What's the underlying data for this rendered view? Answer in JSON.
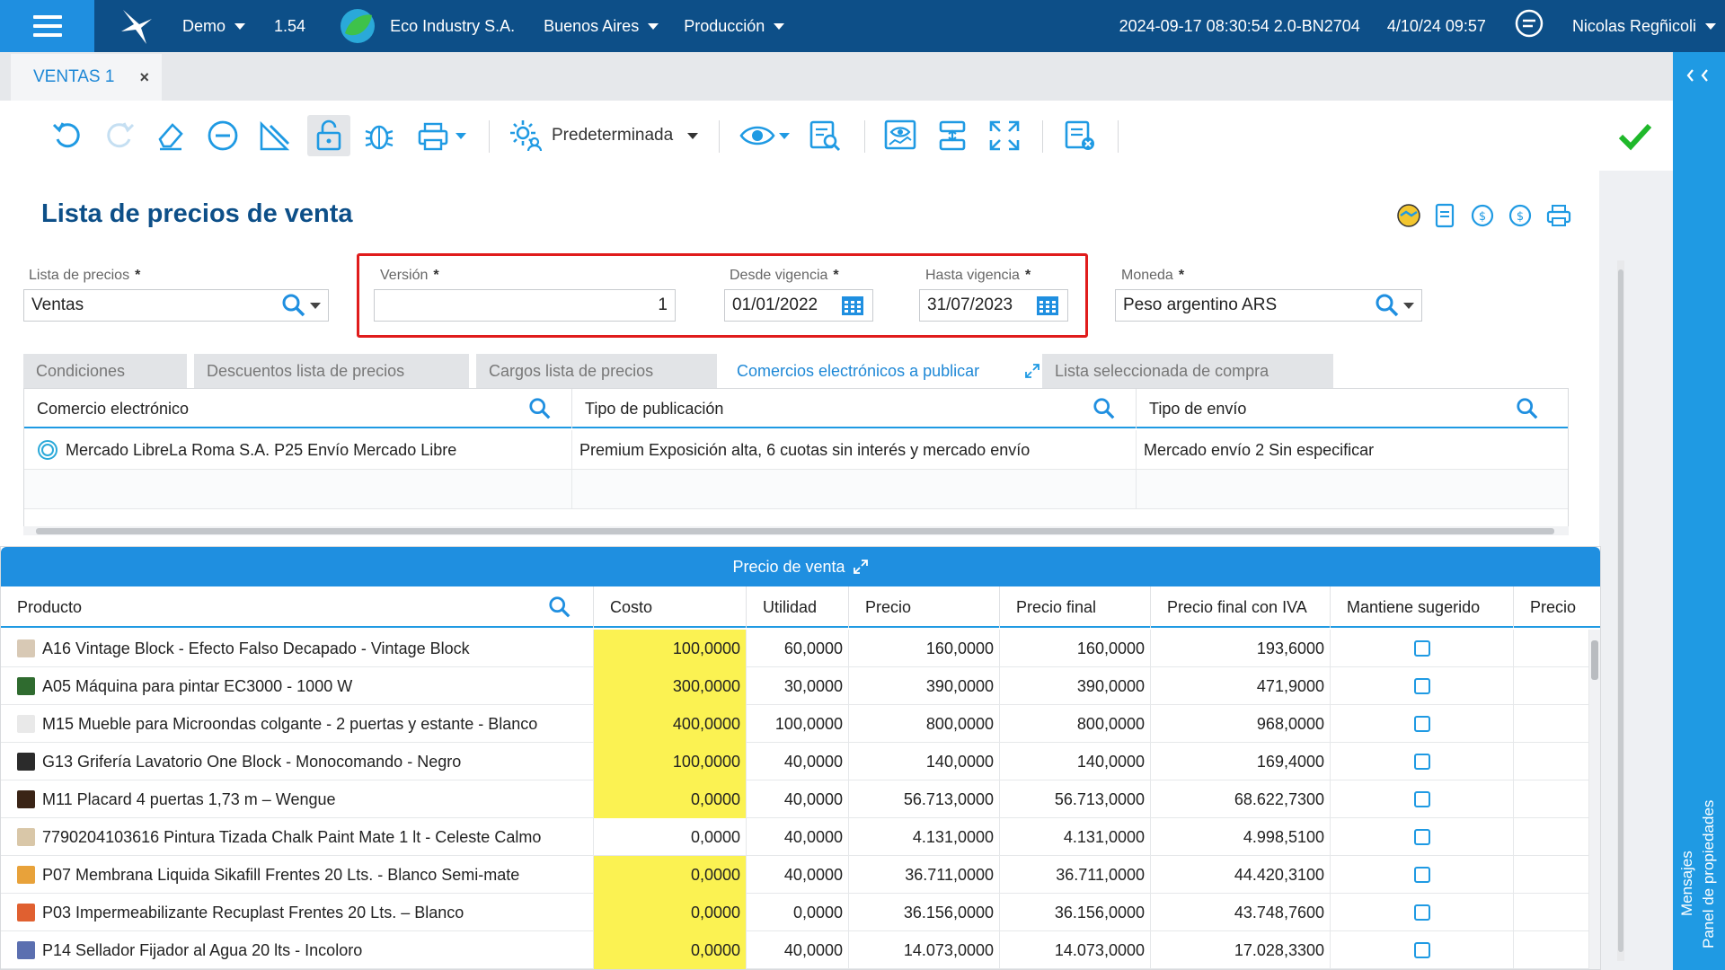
{
  "topbar": {
    "env": "Demo",
    "version": "1.54",
    "company": "Eco Industry S.A.",
    "city": "Buenos Aires",
    "mode": "Producción",
    "build": "2024-09-17 08:30:54 2.0-BN2704",
    "date": "4/10/24 09:57",
    "user": "Nicolas Regñicoli"
  },
  "doc_tab": {
    "label": "VENTAS 1",
    "close": "×"
  },
  "toolbar": {
    "preset_label": "Predeterminada"
  },
  "page": {
    "title": "Lista de precios de venta"
  },
  "fields": {
    "lista": {
      "label": "Lista de precios",
      "value": "Ventas"
    },
    "version": {
      "label": "Versión",
      "value": "1"
    },
    "desde": {
      "label": "Desde vigencia",
      "value": "01/01/2022"
    },
    "hasta": {
      "label": "Hasta vigencia",
      "value": "31/07/2023"
    },
    "moneda": {
      "label": "Moneda",
      "value": "Peso argentino ARS"
    },
    "required_mark": "*"
  },
  "tabs": [
    {
      "label": "Condiciones"
    },
    {
      "label": "Descuentos lista de precios"
    },
    {
      "label": "Cargos lista de precios"
    },
    {
      "label": "Comercios electrónicos a publicar"
    },
    {
      "label": "Lista seleccionada de compra"
    }
  ],
  "ecommerce_grid": {
    "columns": [
      "Comercio electrónico",
      "Tipo de publicación",
      "Tipo de envío"
    ],
    "rows": [
      [
        "Mercado LibreLa Roma S.A. P25 Envío Mercado Libre",
        "Premium Exposición alta, 6 cuotas sin interés y mercado envío",
        "Mercado envío 2 Sin especificar"
      ]
    ]
  },
  "price_panel": {
    "title": "Precio de venta",
    "columns": [
      "Producto",
      "Costo",
      "Utilidad",
      "Precio",
      "Precio final",
      "Precio final con IVA",
      "Mantiene sugerido",
      "Precio"
    ],
    "rows": [
      {
        "product": "A16 Vintage Block - Efecto Falso Decapado - Vintage Block",
        "cost": "100,0000",
        "util": "60,0000",
        "price": "160,0000",
        "final": "160,0000",
        "iva": "193,6000",
        "yellow": true,
        "thumb": "#d8c9b5"
      },
      {
        "product": "A05 Máquina para pintar EC3000 - 1000 W",
        "cost": "300,0000",
        "util": "30,0000",
        "price": "390,0000",
        "final": "390,0000",
        "iva": "471,9000",
        "yellow": true,
        "thumb": "#2f6b2f"
      },
      {
        "product": "M15 Mueble para Microondas colgante - 2 puertas y estante - Blanco",
        "cost": "400,0000",
        "util": "100,0000",
        "price": "800,0000",
        "final": "800,0000",
        "iva": "968,0000",
        "yellow": true,
        "thumb": "#e9e9e9"
      },
      {
        "product": "G13 Grifería Lavatorio One Block - Monocomando - Negro",
        "cost": "100,0000",
        "util": "40,0000",
        "price": "140,0000",
        "final": "140,0000",
        "iva": "169,4000",
        "yellow": true,
        "thumb": "#2b2b2b"
      },
      {
        "product": "M11 Placard 4 puertas 1,73 m – Wengue",
        "cost": "0,0000",
        "util": "40,0000",
        "price": "56.713,0000",
        "final": "56.713,0000",
        "iva": "68.622,7300",
        "yellow": true,
        "thumb": "#3a2416"
      },
      {
        "product": "7790204103616 Pintura Tizada Chalk Paint Mate 1 lt - Celeste Calmo",
        "cost": "0,0000",
        "util": "40,0000",
        "price": "4.131,0000",
        "final": "4.131,0000",
        "iva": "4.998,5100",
        "yellow": false,
        "thumb": "#d9c7a8"
      },
      {
        "product": "P07 Membrana Liquida Sikafill Frentes 20 Lts. - Blanco Semi-mate",
        "cost": "0,0000",
        "util": "40,0000",
        "price": "36.711,0000",
        "final": "36.711,0000",
        "iva": "44.420,3100",
        "yellow": true,
        "thumb": "#e8a23a"
      },
      {
        "product": "P03 Impermeabilizante Recuplast Frentes 20 Lts. – Blanco",
        "cost": "0,0000",
        "util": "0,0000",
        "price": "36.156,0000",
        "final": "36.156,0000",
        "iva": "43.748,7600",
        "yellow": true,
        "thumb": "#e06030"
      },
      {
        "product": "P14 Sellador Fijador al Agua 20 lts - Incoloro",
        "cost": "0,0000",
        "util": "40,0000",
        "price": "14.073,0000",
        "final": "14.073,0000",
        "iva": "17.028,3300",
        "yellow": true,
        "thumb": "#5b6fb0"
      }
    ]
  },
  "side": {
    "props": "Panel de propiedades",
    "messages": "Mensajes"
  },
  "colors": {
    "brand": "#0d4f88",
    "accent": "#1f9ae3",
    "highlight": "#fbf252",
    "alert": "#e01c1c",
    "ok": "#1fb82a"
  }
}
